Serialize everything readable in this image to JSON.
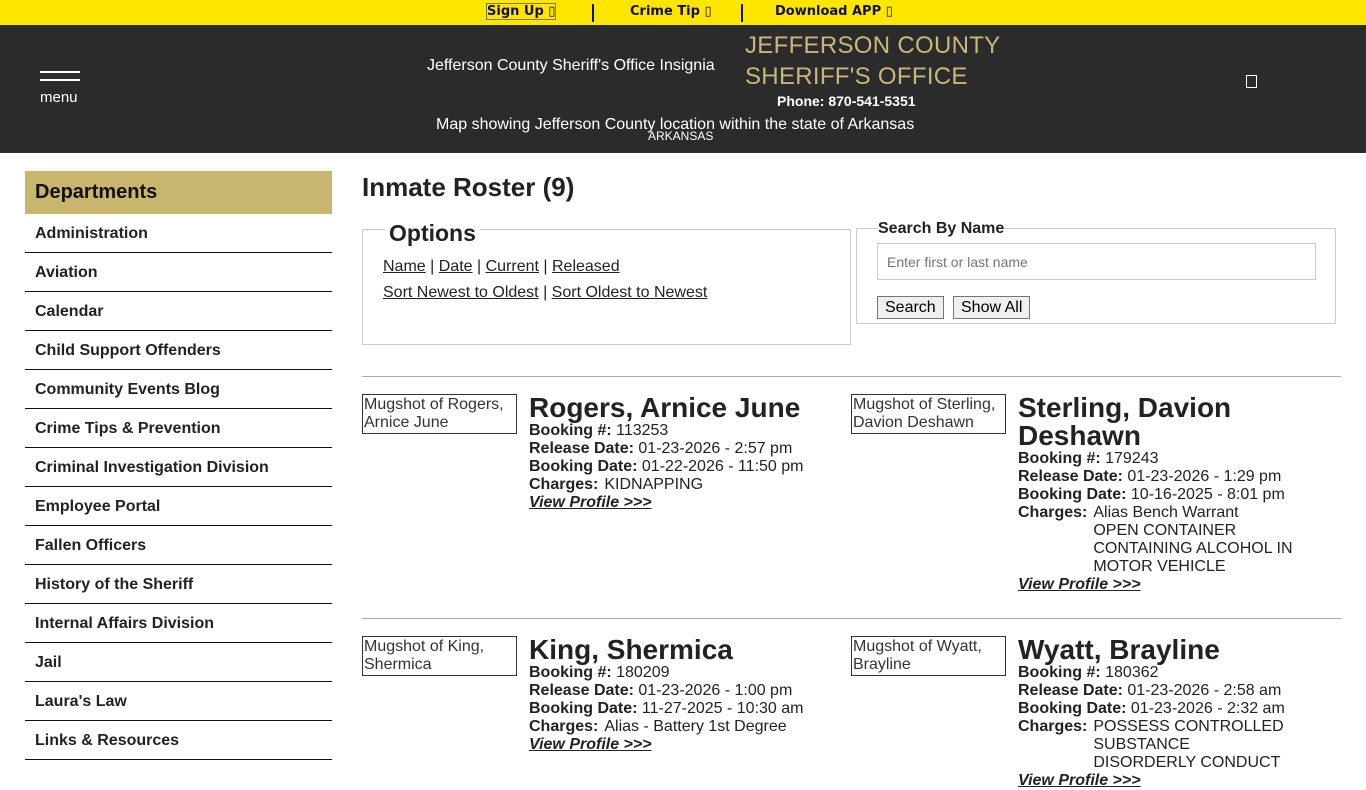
{
  "topbar": {
    "signup": "Sign Up ▯",
    "crime_tip": "Crime Tip ▯",
    "download": "Download APP ▯"
  },
  "header": {
    "menu": "menu",
    "insignia_alt": "Jefferson County Sheriff's Office Insignia",
    "agency_line1": "JEFFERSON COUNTY",
    "agency_line2": "SHERIFF'S OFFICE",
    "phone": "Phone: 870-541-5351",
    "map_alt": "Map showing Jefferson County location within the state of Arkansas",
    "map_label": "ARKANSAS"
  },
  "sidebar": {
    "title": "Departments",
    "items": [
      "Administration",
      "Aviation",
      "Calendar",
      "Child Support Offenders",
      "Community Events Blog",
      "Crime Tips & Prevention",
      "Criminal Investigation Division",
      "Employee Portal",
      "Fallen Officers",
      "History of the Sheriff",
      "Internal Affairs Division",
      "Jail",
      "Laura's Law",
      "Links & Resources"
    ]
  },
  "main": {
    "title": "Inmate Roster (9)",
    "options": {
      "title": "Options",
      "name": "Name",
      "date": "Date",
      "current": "Current",
      "released": "Released",
      "newest": "Sort Newest to Oldest",
      "oldest": "Sort Oldest to Newest",
      "sep": " | "
    },
    "search": {
      "label": "Search By Name",
      "placeholder": "Enter first or last name",
      "search_btn": "Search",
      "show_all": "Show All"
    },
    "labels": {
      "booking": "Booking #:",
      "release": "Release Date:",
      "booking_date": "Booking Date:",
      "charges": "Charges:",
      "view": "View Profile >>>"
    },
    "inmates": [
      {
        "mug_alt": "Mugshot of Rogers, Arnice June",
        "name": "Rogers, Arnice June",
        "booking": "113253",
        "release": "01-23-2026 - 2:57 pm",
        "booking_date": "01-22-2026 - 11:50 pm",
        "charges": [
          "KIDNAPPING"
        ]
      },
      {
        "mug_alt": "Mugshot of Sterling, Davion Deshawn",
        "name": "Sterling, Davion Deshawn",
        "booking": "179243",
        "release": "01-23-2026 - 1:29 pm",
        "booking_date": "10-16-2025 - 8:01 pm",
        "charges": [
          "Alias Bench Warrant",
          "OPEN CONTAINER CONTAINING ALCOHOL IN MOTOR VEHICLE"
        ]
      },
      {
        "mug_alt": "Mugshot of King, Shermica",
        "name": "King, Shermica",
        "booking": "180209",
        "release": "01-23-2026 - 1:00 pm",
        "booking_date": "11-27-2025 - 10:30 am",
        "charges": [
          "Alias - Battery 1st Degree"
        ]
      },
      {
        "mug_alt": "Mugshot of Wyatt, Brayline",
        "name": "Wyatt, Brayline",
        "booking": "180362",
        "release": "01-23-2026 - 2:58 am",
        "booking_date": "01-23-2026 - 2:32 am",
        "charges": [
          "POSSESS CONTROLLED SUBSTANCE",
          "DISORDERLY CONDUCT"
        ]
      }
    ]
  }
}
